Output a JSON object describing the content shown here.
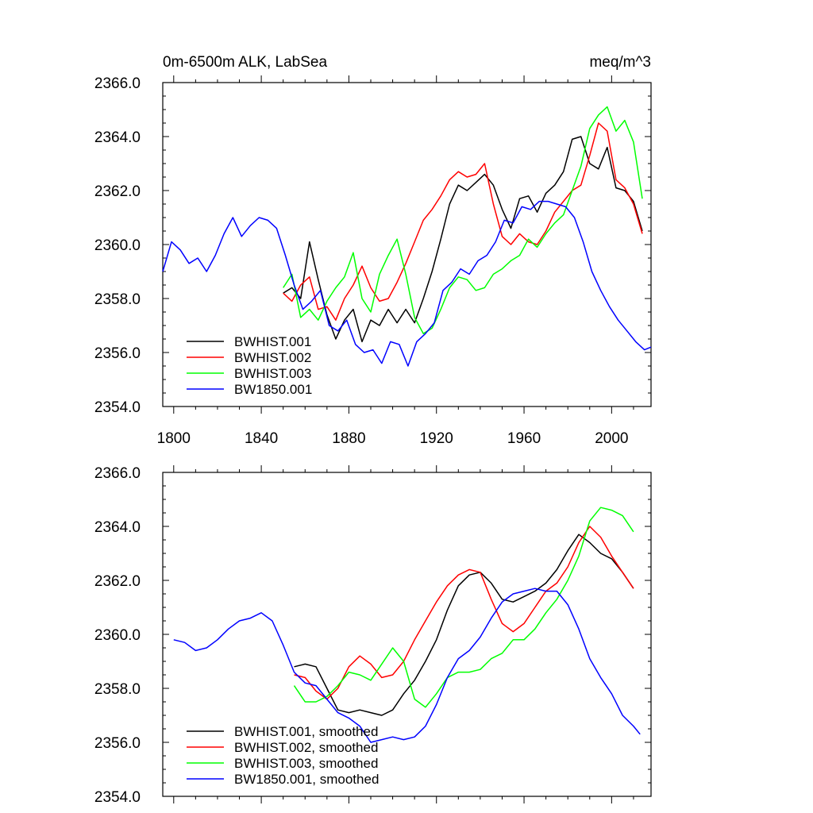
{
  "figure": {
    "title_left": "0m-6500m ALK, LabSea",
    "title_right": "meq/m^3"
  },
  "colors": {
    "BWHIST.001": "#000000",
    "BWHIST.002": "#ff0000",
    "BWHIST.003": "#00ff00",
    "BW1850.001": "#0000ff"
  },
  "chart_data": [
    {
      "type": "line",
      "panel": "top",
      "title": "0m-6500m ALK, LabSea",
      "units": "meq/m^3",
      "xlim": [
        1795,
        2018
      ],
      "ylim": [
        2354,
        2366
      ],
      "x_ticks": [
        1800,
        1840,
        1880,
        1920,
        1960,
        2000
      ],
      "x_tick_labels": [
        "1800",
        "1840",
        "1880",
        "1920",
        "1960",
        "2000"
      ],
      "y_ticks": [
        2354,
        2356,
        2358,
        2360,
        2362,
        2364,
        2366
      ],
      "y_tick_labels": [
        "2354.0",
        "2356.0",
        "2358.0",
        "2360.0",
        "2362.0",
        "2364.0",
        "2366.0"
      ],
      "legend": [
        "BWHIST.001",
        "BWHIST.002",
        "BWHIST.003",
        "BW1850.001"
      ],
      "legend_location": "lower-left",
      "series": [
        {
          "name": "BWHIST.001",
          "color": "#000000",
          "x": [
            1850,
            1854,
            1858,
            1862,
            1866,
            1870,
            1874,
            1878,
            1882,
            1886,
            1890,
            1894,
            1898,
            1902,
            1906,
            1910,
            1914,
            1918,
            1922,
            1926,
            1930,
            1934,
            1938,
            1942,
            1946,
            1950,
            1954,
            1958,
            1962,
            1966,
            1970,
            1974,
            1978,
            1982,
            1986,
            1990,
            1994,
            1998,
            2002,
            2006,
            2010,
            2014
          ],
          "y": [
            2358.2,
            2358.4,
            2358.0,
            2360.1,
            2358.7,
            2357.4,
            2356.5,
            2357.2,
            2357.6,
            2356.4,
            2357.2,
            2357.0,
            2357.6,
            2357.1,
            2357.6,
            2357.1,
            2358.0,
            2359.0,
            2360.2,
            2361.5,
            2362.2,
            2362.0,
            2362.3,
            2362.6,
            2362.2,
            2361.3,
            2360.6,
            2361.7,
            2361.8,
            2361.2,
            2361.9,
            2362.2,
            2362.7,
            2363.9,
            2364.0,
            2363.0,
            2362.8,
            2363.6,
            2362.1,
            2362.0,
            2361.6,
            2360.5
          ]
        },
        {
          "name": "BWHIST.002",
          "color": "#ff0000",
          "x": [
            1850,
            1854,
            1858,
            1862,
            1866,
            1870,
            1874,
            1878,
            1882,
            1886,
            1890,
            1894,
            1898,
            1902,
            1906,
            1910,
            1914,
            1918,
            1922,
            1926,
            1930,
            1934,
            1938,
            1942,
            1946,
            1950,
            1954,
            1958,
            1962,
            1966,
            1970,
            1974,
            1978,
            1982,
            1986,
            1990,
            1994,
            1998,
            2002,
            2006,
            2010,
            2014
          ],
          "y": [
            2358.2,
            2357.9,
            2358.5,
            2358.8,
            2357.6,
            2357.7,
            2357.2,
            2358.0,
            2358.5,
            2359.2,
            2358.4,
            2357.9,
            2358.0,
            2358.6,
            2359.3,
            2360.1,
            2360.9,
            2361.3,
            2361.8,
            2362.4,
            2362.7,
            2362.5,
            2362.6,
            2363.0,
            2361.5,
            2360.3,
            2360.0,
            2360.4,
            2360.1,
            2360.0,
            2360.5,
            2361.2,
            2361.6,
            2362.0,
            2362.2,
            2363.3,
            2364.5,
            2364.2,
            2362.4,
            2362.1,
            2361.5,
            2360.4
          ]
        },
        {
          "name": "BWHIST.003",
          "color": "#00ff00",
          "x": [
            1850,
            1854,
            1858,
            1862,
            1866,
            1870,
            1874,
            1878,
            1882,
            1886,
            1890,
            1894,
            1898,
            1902,
            1906,
            1910,
            1914,
            1918,
            1922,
            1926,
            1930,
            1934,
            1938,
            1942,
            1946,
            1950,
            1954,
            1958,
            1962,
            1966,
            1970,
            1974,
            1978,
            1982,
            1986,
            1990,
            1994,
            1998,
            2002,
            2006,
            2010,
            2014
          ],
          "y": [
            2358.4,
            2358.9,
            2357.3,
            2357.6,
            2357.2,
            2357.9,
            2358.4,
            2358.8,
            2359.7,
            2358.0,
            2357.5,
            2358.9,
            2359.6,
            2360.2,
            2358.9,
            2357.3,
            2356.7,
            2356.9,
            2357.6,
            2358.4,
            2358.8,
            2358.7,
            2358.3,
            2358.4,
            2358.9,
            2359.1,
            2359.4,
            2359.6,
            2360.2,
            2359.9,
            2360.4,
            2360.8,
            2361.1,
            2362.0,
            2362.9,
            2364.3,
            2364.8,
            2365.1,
            2364.2,
            2364.6,
            2363.8,
            2361.7
          ]
        },
        {
          "name": "BW1850.001",
          "color": "#0000ff",
          "x": [
            1795,
            1799,
            1803,
            1807,
            1811,
            1815,
            1819,
            1823,
            1827,
            1831,
            1835,
            1839,
            1843,
            1847,
            1851,
            1855,
            1859,
            1863,
            1867,
            1871,
            1875,
            1879,
            1883,
            1887,
            1891,
            1895,
            1899,
            1903,
            1907,
            1911,
            1915,
            1919,
            1923,
            1927,
            1931,
            1935,
            1939,
            1943,
            1947,
            1951,
            1955,
            1959,
            1963,
            1967,
            1971,
            1975,
            1979,
            1983,
            1987,
            1991,
            1995,
            1999,
            2003,
            2007,
            2011,
            2015,
            2018
          ],
          "y": [
            2359.0,
            2360.1,
            2359.8,
            2359.3,
            2359.5,
            2359.0,
            2359.6,
            2360.4,
            2361.0,
            2360.3,
            2360.7,
            2361.0,
            2360.9,
            2360.6,
            2359.6,
            2358.5,
            2357.6,
            2357.9,
            2358.3,
            2357.0,
            2356.8,
            2357.2,
            2356.3,
            2356.0,
            2356.1,
            2355.6,
            2356.4,
            2356.3,
            2355.5,
            2356.4,
            2356.7,
            2357.1,
            2358.3,
            2358.6,
            2359.1,
            2358.9,
            2359.4,
            2359.6,
            2360.1,
            2360.9,
            2360.8,
            2361.4,
            2361.3,
            2361.6,
            2361.6,
            2361.5,
            2361.4,
            2361.0,
            2360.1,
            2359.0,
            2358.3,
            2357.7,
            2357.2,
            2356.8,
            2356.4,
            2356.1,
            2356.2
          ]
        }
      ]
    },
    {
      "type": "line",
      "panel": "bottom",
      "xlim": [
        1795,
        2018
      ],
      "ylim": [
        2354,
        2366
      ],
      "x_ticks": [
        1800,
        1840,
        1880,
        1920,
        1960,
        2000
      ],
      "y_ticks": [
        2354,
        2356,
        2358,
        2360,
        2362,
        2364,
        2366
      ],
      "y_tick_labels": [
        "2354.0",
        "2356.0",
        "2358.0",
        "2360.0",
        "2362.0",
        "2364.0",
        "2366.0"
      ],
      "legend": [
        "BWHIST.001, smoothed",
        "BWHIST.002, smoothed",
        "BWHIST.003, smoothed",
        "BW1850.001, smoothed"
      ],
      "legend_location": "lower-left",
      "series": [
        {
          "name": "BWHIST.001, smoothed",
          "color": "#000000",
          "x": [
            1855,
            1860,
            1865,
            1870,
            1875,
            1880,
            1885,
            1890,
            1895,
            1900,
            1905,
            1910,
            1915,
            1920,
            1925,
            1930,
            1935,
            1940,
            1945,
            1950,
            1955,
            1960,
            1965,
            1970,
            1975,
            1980,
            1985,
            1990,
            1995,
            2000,
            2005,
            2010
          ],
          "y": [
            2358.8,
            2358.9,
            2358.8,
            2358.0,
            2357.2,
            2357.1,
            2357.2,
            2357.1,
            2357.0,
            2357.2,
            2357.8,
            2358.3,
            2359.0,
            2359.8,
            2360.9,
            2361.8,
            2362.2,
            2362.3,
            2361.9,
            2361.3,
            2361.2,
            2361.4,
            2361.6,
            2361.9,
            2362.4,
            2363.1,
            2363.7,
            2363.4,
            2363.0,
            2362.8,
            2362.3,
            2361.7
          ]
        },
        {
          "name": "BWHIST.002, smoothed",
          "color": "#ff0000",
          "x": [
            1855,
            1860,
            1865,
            1870,
            1875,
            1880,
            1885,
            1890,
            1895,
            1900,
            1905,
            1910,
            1915,
            1920,
            1925,
            1930,
            1935,
            1940,
            1945,
            1950,
            1955,
            1960,
            1965,
            1970,
            1975,
            1980,
            1985,
            1990,
            1995,
            2000,
            2005,
            2010
          ],
          "y": [
            2358.5,
            2358.4,
            2357.9,
            2357.6,
            2358.0,
            2358.8,
            2359.2,
            2358.9,
            2358.4,
            2358.5,
            2359.0,
            2359.8,
            2360.5,
            2361.2,
            2361.8,
            2362.2,
            2362.4,
            2362.3,
            2361.3,
            2360.4,
            2360.1,
            2360.4,
            2361.0,
            2361.6,
            2361.9,
            2362.5,
            2363.4,
            2364.0,
            2363.6,
            2362.9,
            2362.3,
            2361.7
          ]
        },
        {
          "name": "BWHIST.003, smoothed",
          "color": "#00ff00",
          "x": [
            1855,
            1860,
            1865,
            1870,
            1875,
            1880,
            1885,
            1890,
            1895,
            1900,
            1905,
            1910,
            1915,
            1920,
            1925,
            1930,
            1935,
            1940,
            1945,
            1950,
            1955,
            1960,
            1965,
            1970,
            1975,
            1980,
            1985,
            1990,
            1995,
            2000,
            2005,
            2010
          ],
          "y": [
            2358.1,
            2357.5,
            2357.5,
            2357.7,
            2358.1,
            2358.6,
            2358.5,
            2358.3,
            2358.9,
            2359.5,
            2359.0,
            2357.6,
            2357.3,
            2357.8,
            2358.4,
            2358.6,
            2358.6,
            2358.7,
            2359.1,
            2359.3,
            2359.8,
            2359.8,
            2360.2,
            2360.8,
            2361.3,
            2362.0,
            2362.9,
            2364.2,
            2364.7,
            2364.6,
            2364.4,
            2363.8
          ]
        },
        {
          "name": "BW1850.001, smoothed",
          "color": "#0000ff",
          "x": [
            1800,
            1805,
            1810,
            1815,
            1820,
            1825,
            1830,
            1835,
            1840,
            1845,
            1850,
            1855,
            1860,
            1865,
            1870,
            1875,
            1880,
            1885,
            1890,
            1895,
            1900,
            1905,
            1910,
            1915,
            1920,
            1925,
            1930,
            1935,
            1940,
            1945,
            1950,
            1955,
            1960,
            1965,
            1970,
            1975,
            1980,
            1985,
            1990,
            1995,
            2000,
            2005,
            2010,
            2013
          ],
          "y": [
            2359.8,
            2359.7,
            2359.4,
            2359.5,
            2359.8,
            2360.2,
            2360.5,
            2360.6,
            2360.8,
            2360.5,
            2359.6,
            2358.6,
            2358.2,
            2358.1,
            2357.6,
            2357.1,
            2356.9,
            2356.6,
            2356.0,
            2356.1,
            2356.2,
            2356.1,
            2356.2,
            2356.6,
            2357.4,
            2358.4,
            2359.1,
            2359.4,
            2359.9,
            2360.6,
            2361.2,
            2361.5,
            2361.6,
            2361.7,
            2361.6,
            2361.6,
            2361.1,
            2360.2,
            2359.1,
            2358.4,
            2357.8,
            2357.0,
            2356.6,
            2356.3
          ]
        }
      ]
    }
  ]
}
